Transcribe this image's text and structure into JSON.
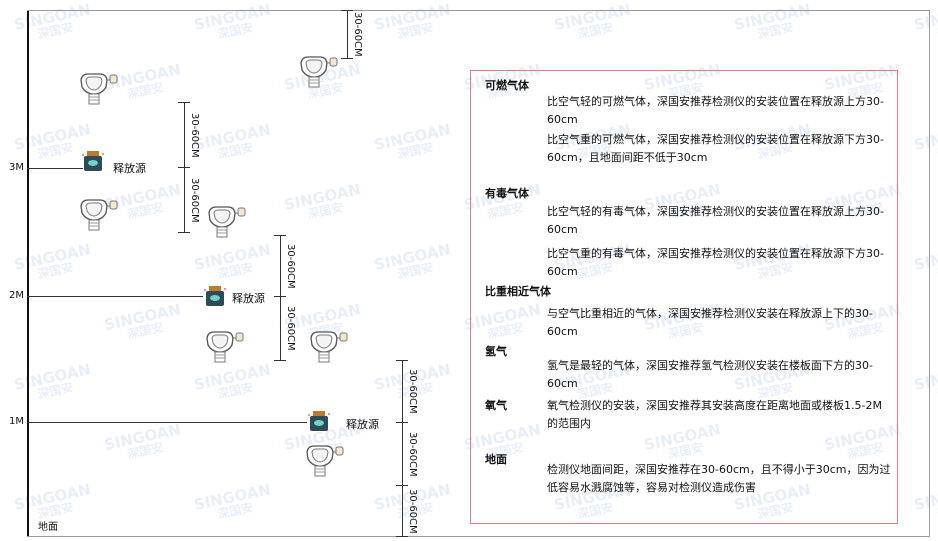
{
  "watermark": "SINGOAN 深国安",
  "levels": {
    "l3": "3M",
    "l2": "2M",
    "l1": "1M"
  },
  "ground_label": "地面",
  "source_label": "释放源",
  "dimension_label": "30-60CM",
  "notes": {
    "combustible": {
      "title": "可燃气体",
      "p1": "比空气轻的可燃气体，深国安推荐检测仪的安装位置在释放源上方30-60cm",
      "p2": "比空气重的可燃气体，深国安推荐检测仪的安装位置在释放源下方30-60cm，且地面间距不低于30cm"
    },
    "toxic": {
      "title": "有毒气体",
      "p1": "比空气轻的有毒气体，深国安推荐检测仪的安装位置在释放源上方30-60cm",
      "p2": "比空气重的有毒气体，深国安推荐检测仪的安装位置在释放源下方30-60cm"
    },
    "similar": {
      "title": "比重相近气体",
      "p1": "与空气比重相近的气体，深国安推荐检测仪安装在释放源上下的30-60cm"
    },
    "hydrogen": {
      "title": "氢气",
      "p1": "氢气是最轻的气体，深国安推荐氢气检测仪安装在楼板面下方的30-60cm"
    },
    "oxygen": {
      "title": "氧气",
      "p1": "氧气检测仪的安装，深国安推荐其安装高度在距离地面或楼板1.5-2M的范围内"
    },
    "ground": {
      "title": "地面",
      "p1": "检测仪地面间距，深国安推荐在30-60cm，且不得小于30cm，因为过低容易水溅腐蚀等，容易对检测仪造成伤害"
    }
  },
  "colors": {
    "border": "#e57b84",
    "source": "#2f4a5a",
    "source_cap": "#c07a30",
    "accent": "#6fd3c8"
  }
}
